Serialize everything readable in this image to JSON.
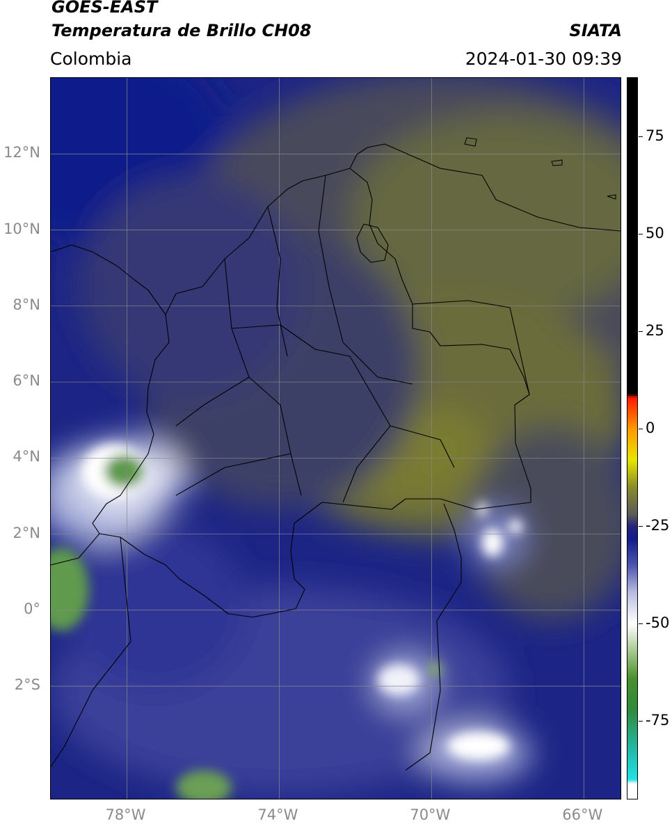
{
  "header": {
    "satellite": "GOES-EAST",
    "product": "Temperatura de Brillo CH08",
    "source": "SIATA",
    "region": "Colombia",
    "datetime": "2024-01-30 09:39"
  },
  "map": {
    "lon_range": [
      -80,
      -65
    ],
    "lat_range": [
      -5,
      14
    ],
    "lon_ticks": [
      {
        "value": -78,
        "label": "78°W"
      },
      {
        "value": -74,
        "label": "74°W"
      },
      {
        "value": -70,
        "label": "70°W"
      },
      {
        "value": -66,
        "label": "66°W"
      }
    ],
    "lat_ticks": [
      {
        "value": 12,
        "label": "12°N"
      },
      {
        "value": 10,
        "label": "10°N"
      },
      {
        "value": 8,
        "label": "8°N"
      },
      {
        "value": 6,
        "label": "6°N"
      },
      {
        "value": 4,
        "label": "4°N"
      },
      {
        "value": 2,
        "label": "2°N"
      },
      {
        "value": 0,
        "label": "0°"
      },
      {
        "value": -2,
        "label": "2°S"
      }
    ]
  },
  "colorbar": {
    "range": [
      -95,
      90
    ],
    "ticks": [
      {
        "value": 75,
        "label": "75"
      },
      {
        "value": 50,
        "label": "50"
      },
      {
        "value": 25,
        "label": "25"
      },
      {
        "value": 0,
        "label": "0"
      },
      {
        "value": -25,
        "label": "-25"
      },
      {
        "value": -50,
        "label": "-50"
      },
      {
        "value": -75,
        "label": "-75"
      }
    ],
    "stops": [
      {
        "value": -95,
        "color": "#ffffff"
      },
      {
        "value": -91,
        "color": "#ffffff"
      },
      {
        "value": -90,
        "color": "#22e3e3"
      },
      {
        "value": -82,
        "color": "#23b8a6"
      },
      {
        "value": -72,
        "color": "#2f8a3a"
      },
      {
        "value": -64,
        "color": "#4b8f2f"
      },
      {
        "value": -57,
        "color": "#a6c890"
      },
      {
        "value": -50,
        "color": "#ffffff"
      },
      {
        "value": -42,
        "color": "#b8bde0"
      },
      {
        "value": -35,
        "color": "#4d55ae"
      },
      {
        "value": -28,
        "color": "#121a8c"
      },
      {
        "value": -25,
        "color": "#24247a"
      },
      {
        "value": -22,
        "color": "#5a5a5a"
      },
      {
        "value": -15,
        "color": "#8a8a2a"
      },
      {
        "value": -8,
        "color": "#e6e600"
      },
      {
        "value": 0,
        "color": "#ff9900"
      },
      {
        "value": 8,
        "color": "#ff1a00"
      },
      {
        "value": 9,
        "color": "#000000"
      },
      {
        "value": 90,
        "color": "#000000"
      }
    ]
  }
}
